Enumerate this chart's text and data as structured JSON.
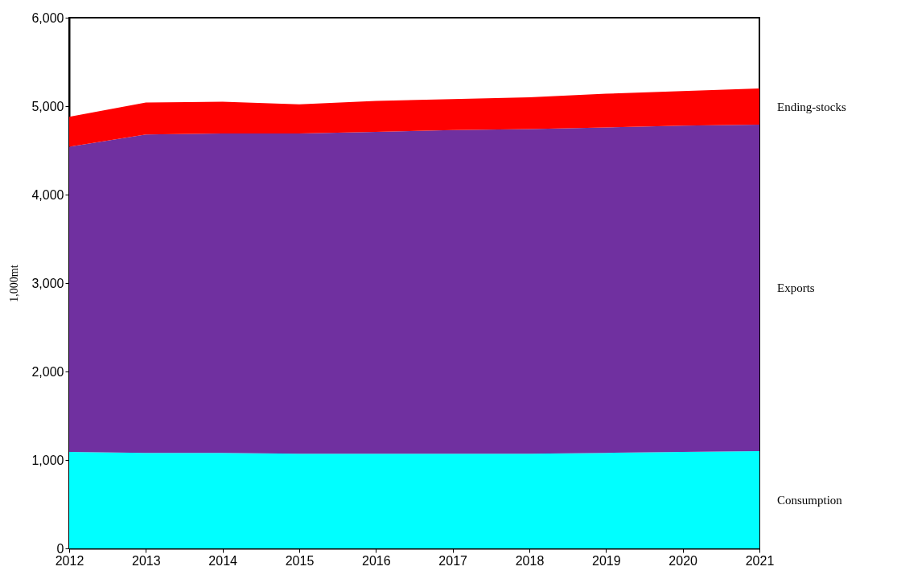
{
  "chart_data": {
    "type": "area",
    "stacked": true,
    "ylabel": "1,000mt",
    "x": [
      2012,
      2013,
      2014,
      2015,
      2016,
      2017,
      2018,
      2019,
      2020,
      2021
    ],
    "xlim": [
      2012,
      2021
    ],
    "xticks": [
      2012,
      2013,
      2014,
      2015,
      2016,
      2017,
      2018,
      2019,
      2020,
      2021
    ],
    "ylim": [
      0,
      6000
    ],
    "yticks": [
      0,
      {
        "value": 1000,
        "label": "1,000"
      },
      {
        "value": 2000,
        "label": "2,000"
      },
      {
        "value": 3000,
        "label": "3,000"
      },
      {
        "value": 4000,
        "label": "4,000"
      },
      {
        "value": 5000,
        "label": "5,000"
      },
      {
        "value": 6000,
        "label": "6,000"
      }
    ],
    "legend": false,
    "grid": false,
    "series": [
      {
        "name": "Consumption",
        "color": "#00ffff",
        "values": [
          1090,
          1080,
          1080,
          1070,
          1070,
          1070,
          1070,
          1080,
          1090,
          1100
        ]
      },
      {
        "name": "Exports",
        "color": "#7030a0",
        "values": [
          3450,
          3600,
          3610,
          3620,
          3640,
          3660,
          3670,
          3680,
          3690,
          3690
        ]
      },
      {
        "name": "Ending-stocks",
        "color": "#ff0000",
        "values": [
          340,
          360,
          360,
          330,
          350,
          350,
          360,
          380,
          390,
          410
        ]
      }
    ]
  }
}
